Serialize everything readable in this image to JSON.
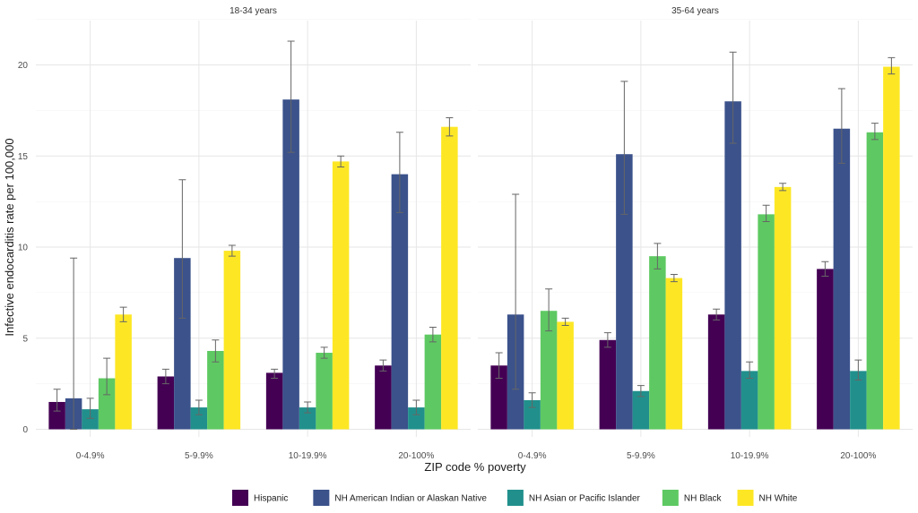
{
  "chart_data": {
    "type": "bar",
    "xlabel": "ZIP code % poverty",
    "ylabel": "Infective endocarditis rate per 100,000",
    "ylim": [
      0,
      22.5
    ],
    "yticks": [
      "0",
      "5",
      "10",
      "15",
      "20"
    ],
    "categories": [
      "0-4.9%",
      "5-9.9%",
      "10-19.9%",
      "20-100%"
    ],
    "grid": true,
    "legend_position": "bottom",
    "series_meta": [
      {
        "name": "Hispanic",
        "color": "#440154"
      },
      {
        "name": "NH American Indian or Alaskan Native",
        "color": "#3b528b"
      },
      {
        "name": "NH Asian or Pacific Islander",
        "color": "#21908c"
      },
      {
        "name": "NH Black",
        "color": "#5ec962"
      },
      {
        "name": "NH White",
        "color": "#fde725"
      }
    ],
    "panels": [
      {
        "title": "18-34 years",
        "series": [
          {
            "name": "Hispanic",
            "values": [
              1.5,
              2.9,
              3.1,
              3.5
            ],
            "lower": [
              1.0,
              2.5,
              2.8,
              3.2
            ],
            "upper": [
              2.2,
              3.3,
              3.3,
              3.8
            ]
          },
          {
            "name": "NH American Indian or Alaskan Native",
            "values": [
              1.7,
              9.4,
              18.1,
              14.0
            ],
            "lower": [
              0.0,
              6.1,
              15.2,
              11.9
            ],
            "upper": [
              9.4,
              13.7,
              21.3,
              16.3
            ]
          },
          {
            "name": "NH Asian or Pacific Islander",
            "values": [
              1.1,
              1.2,
              1.2,
              1.2
            ],
            "lower": [
              0.6,
              0.8,
              0.9,
              0.8
            ],
            "upper": [
              1.7,
              1.6,
              1.5,
              1.6
            ]
          },
          {
            "name": "NH Black",
            "values": [
              2.8,
              4.3,
              4.2,
              5.2
            ],
            "lower": [
              1.9,
              3.7,
              3.9,
              4.8
            ],
            "upper": [
              3.9,
              4.9,
              4.5,
              5.6
            ]
          },
          {
            "name": "NH White",
            "values": [
              6.3,
              9.8,
              14.7,
              16.6
            ],
            "lower": [
              5.9,
              9.5,
              14.4,
              16.1
            ],
            "upper": [
              6.7,
              10.1,
              15.0,
              17.1
            ]
          }
        ]
      },
      {
        "title": "35-64 years",
        "series": [
          {
            "name": "Hispanic",
            "values": [
              3.5,
              4.9,
              6.3,
              8.8
            ],
            "lower": [
              2.8,
              4.5,
              6.0,
              8.4
            ],
            "upper": [
              4.2,
              5.3,
              6.6,
              9.2
            ]
          },
          {
            "name": "NH American Indian or Alaskan Native",
            "values": [
              6.3,
              15.1,
              18.0,
              16.5
            ],
            "lower": [
              2.2,
              11.8,
              15.7,
              14.6
            ],
            "upper": [
              12.9,
              19.1,
              20.7,
              18.7
            ]
          },
          {
            "name": "NH Asian or Pacific Islander",
            "values": [
              1.6,
              2.1,
              3.2,
              3.2
            ],
            "lower": [
              1.2,
              1.8,
              2.8,
              2.7
            ],
            "upper": [
              2.0,
              2.4,
              3.7,
              3.8
            ]
          },
          {
            "name": "NH Black",
            "values": [
              6.5,
              9.5,
              11.8,
              16.3
            ],
            "lower": [
              5.4,
              8.8,
              11.4,
              15.9
            ],
            "upper": [
              7.7,
              10.2,
              12.3,
              16.8
            ]
          },
          {
            "name": "NH White",
            "values": [
              5.9,
              8.3,
              13.3,
              19.9
            ],
            "lower": [
              5.7,
              8.1,
              13.1,
              19.5
            ],
            "upper": [
              6.1,
              8.5,
              13.5,
              20.4
            ]
          }
        ]
      }
    ]
  }
}
